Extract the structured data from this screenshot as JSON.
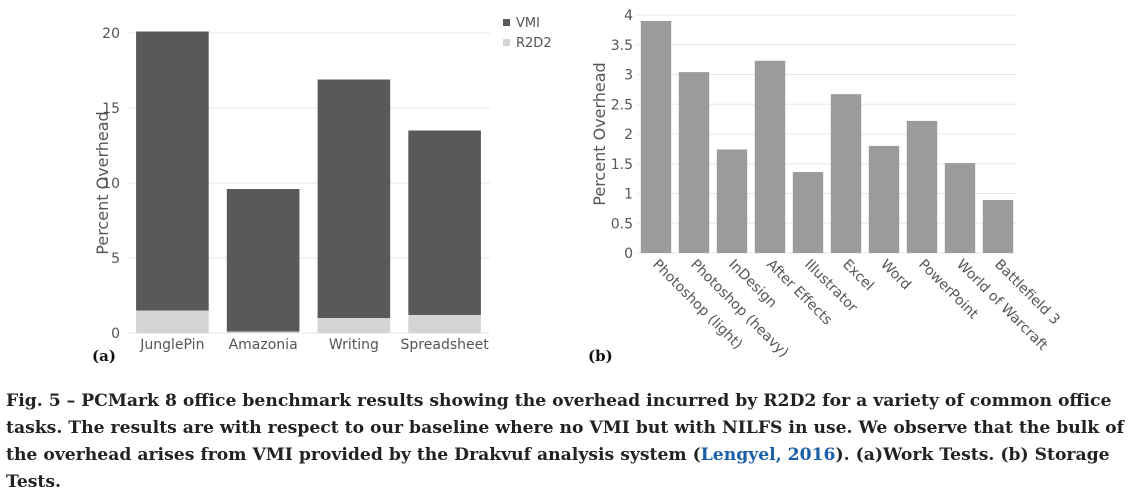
{
  "charts": [
    {
      "panel": "(a)",
      "chart_data": {
        "type": "bar",
        "stacked": true,
        "categories": [
          "JunglePin",
          "Amazonia",
          "Writing",
          "Spreadsheet"
        ],
        "series": [
          {
            "name": "VMI",
            "values": [
              18.6,
              9.5,
              15.9,
              12.3
            ],
            "color": "#595959"
          },
          {
            "name": "R2D2",
            "values": [
              1.5,
              0.1,
              1.0,
              1.2
            ],
            "color": "#d4d4d4"
          }
        ],
        "ylabel": "Percent Overhead",
        "xlabel": "",
        "ylim": [
          0,
          20
        ],
        "yticks": [
          0,
          5,
          10,
          15,
          20
        ],
        "grid": true,
        "legend_position": "top-right"
      }
    },
    {
      "panel": "(b)",
      "chart_data": {
        "type": "bar",
        "categories": [
          "Photoshop (light)",
          "Photoshop (heavy)",
          "InDesign",
          "After Effects",
          "Illustrator",
          "Excel",
          "Word",
          "PowerPoint",
          "World of Warcraft",
          "Battlefield 3"
        ],
        "series": [
          {
            "values": [
              3.9,
              3.04,
              1.74,
              3.23,
              1.36,
              2.67,
              1.8,
              2.22,
              1.51,
              0.89
            ],
            "color": "#9b9b9b"
          }
        ],
        "ylabel": "Percent Overhead",
        "xlabel": "",
        "ylim": [
          0,
          4
        ],
        "yticks": [
          0,
          0.5,
          1,
          1.5,
          2,
          2.5,
          3,
          3.5,
          4
        ],
        "grid": true
      }
    }
  ],
  "caption": {
    "text_before": "Fig. 5 – PCMark 8 office benchmark results showing the overhead incurred by R2D2 for a variety of common office tasks. The results are with respect to our baseline where no VMI but with NILFS in use. We observe that the bulk of the overhead arises from VMI provided by the Drakvuf analysis system (",
    "reference": "Lengyel, 2016",
    "text_after": "). (a)Work Tests. (b) Storage Tests."
  }
}
